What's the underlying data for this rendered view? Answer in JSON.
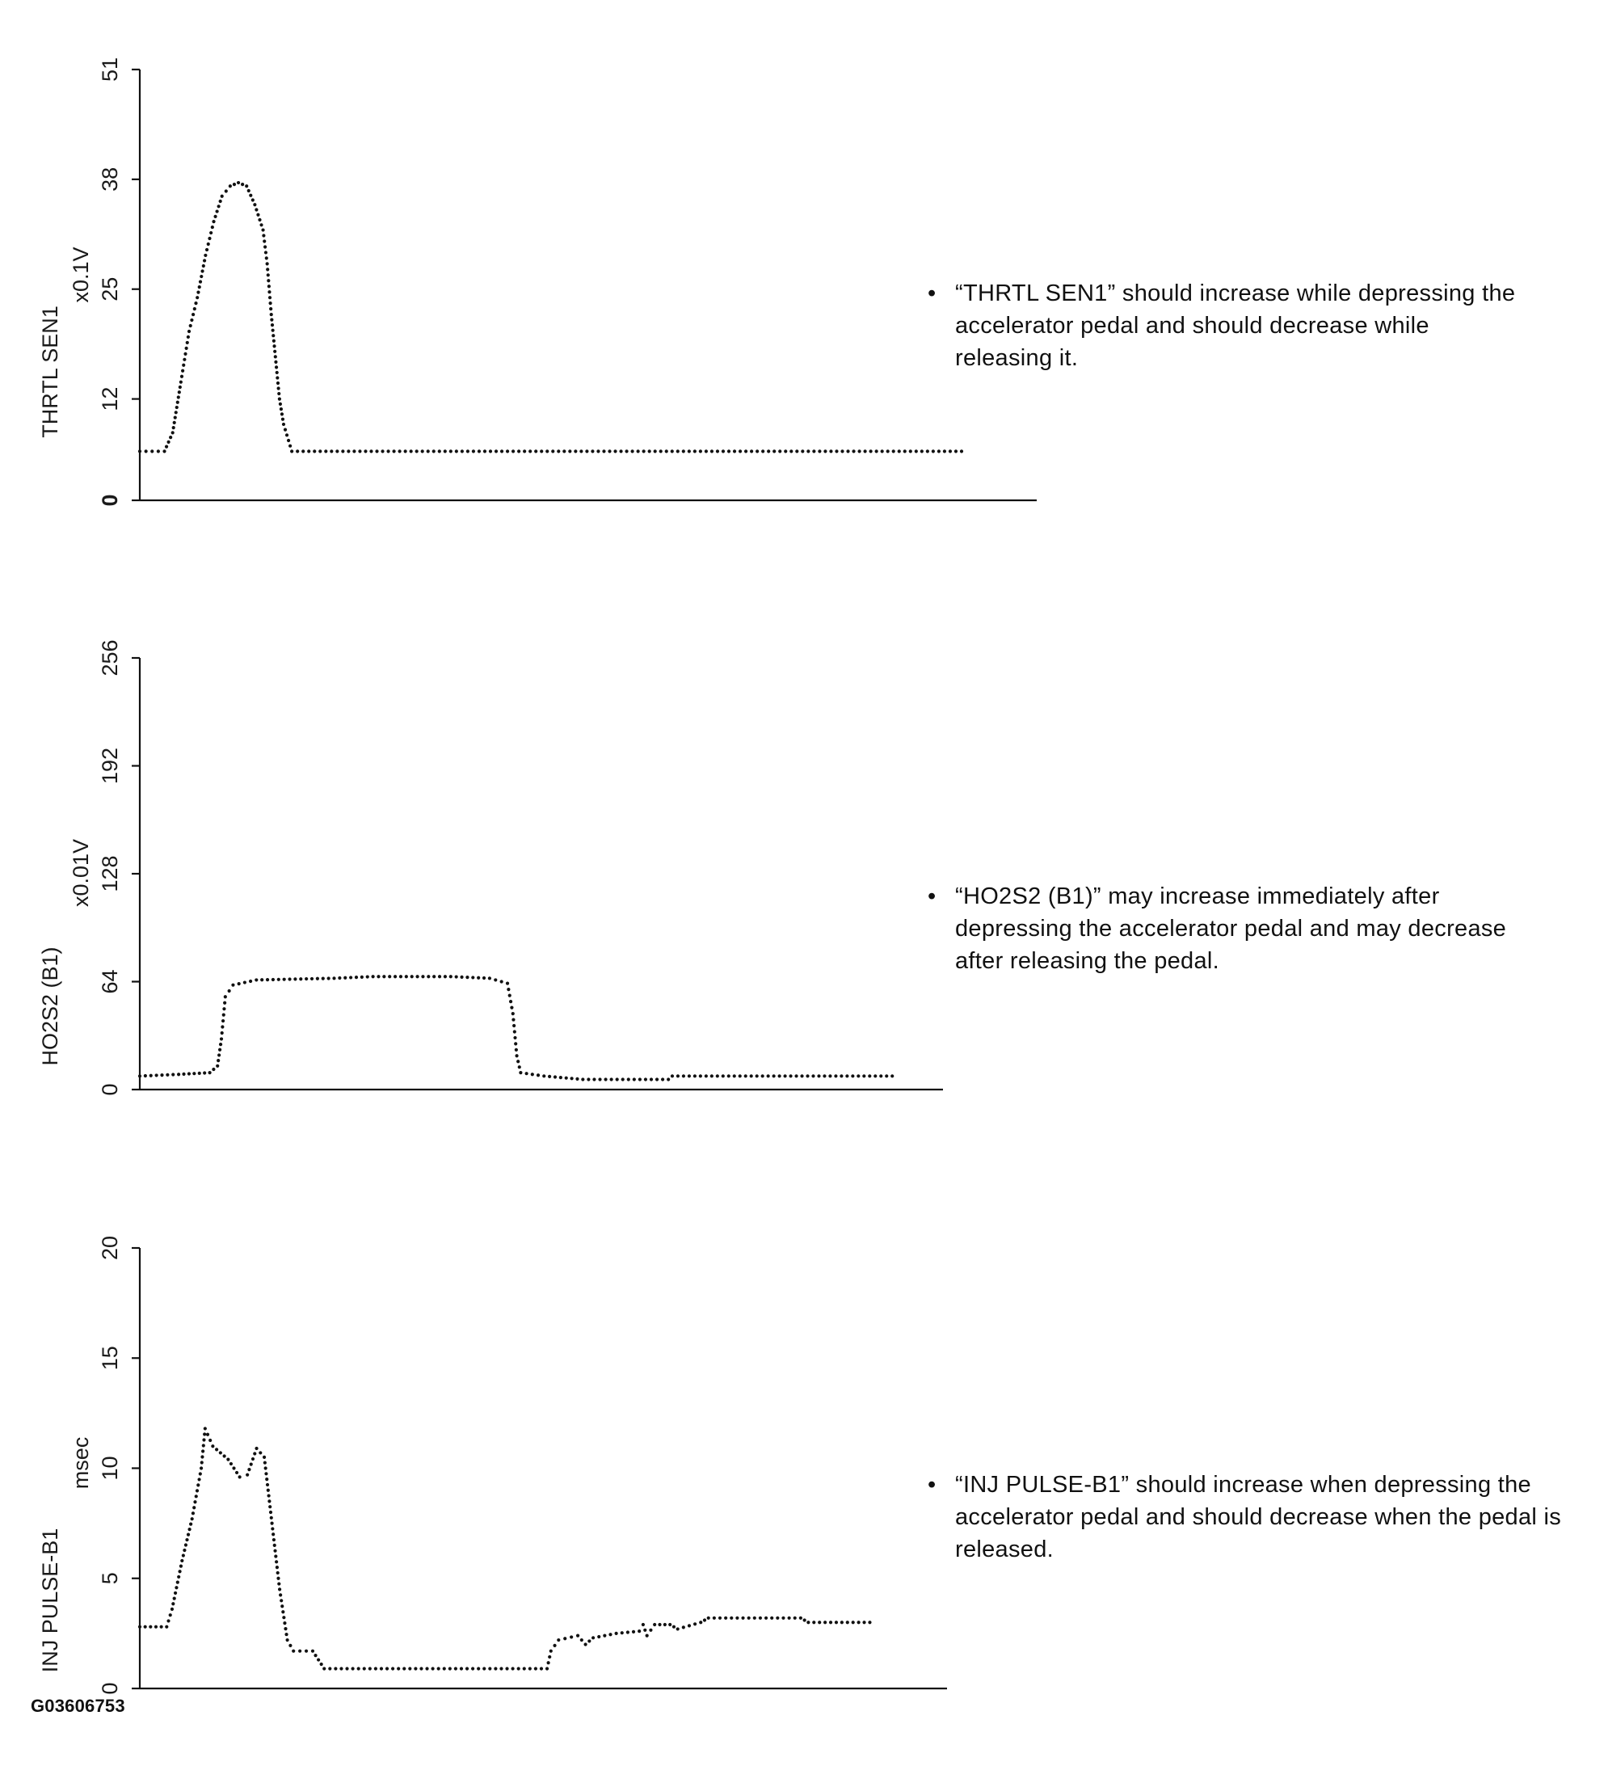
{
  "chart_data": [
    {
      "type": "scatter",
      "id": "thrtl",
      "ylabel": "THRTL SEN1",
      "unit": "x0.1V",
      "yticks": [
        "0",
        "12",
        "25",
        "38",
        "51"
      ],
      "ylim": [
        0,
        51
      ],
      "xlim": [
        0,
        1000
      ],
      "x_labeled": false,
      "points": [
        [
          0,
          5.8
        ],
        [
          30,
          5.8
        ],
        [
          40,
          8
        ],
        [
          45,
          11
        ],
        [
          50,
          14
        ],
        [
          60,
          20
        ],
        [
          70,
          24
        ],
        [
          80,
          29
        ],
        [
          90,
          33
        ],
        [
          100,
          36
        ],
        [
          110,
          37.2
        ],
        [
          120,
          37.6
        ],
        [
          130,
          37.2
        ],
        [
          140,
          35
        ],
        [
          150,
          32
        ],
        [
          155,
          28
        ],
        [
          160,
          22
        ],
        [
          165,
          17
        ],
        [
          170,
          12
        ],
        [
          175,
          9
        ],
        [
          185,
          5.8
        ],
        [
          1000,
          5.8
        ]
      ],
      "note": "“THRTL SEN1” should increase while depressing the accelerator pedal and should decrease while releasing it."
    },
    {
      "type": "scatter",
      "id": "ho2s2",
      "ylabel": "HO2S2 (B1)",
      "unit": "x0.01V",
      "yticks": [
        "0",
        "64",
        "128",
        "192",
        "256"
      ],
      "ylim": [
        0,
        256
      ],
      "xlim": [
        0,
        1000
      ],
      "x_labeled": false,
      "points": [
        [
          0,
          8
        ],
        [
          50,
          9
        ],
        [
          90,
          10
        ],
        [
          100,
          14
        ],
        [
          105,
          30
        ],
        [
          110,
          55
        ],
        [
          120,
          62
        ],
        [
          150,
          65
        ],
        [
          250,
          66
        ],
        [
          300,
          67
        ],
        [
          400,
          67
        ],
        [
          450,
          66
        ],
        [
          473,
          63
        ],
        [
          480,
          45
        ],
        [
          485,
          20
        ],
        [
          490,
          10
        ],
        [
          520,
          8
        ],
        [
          570,
          6
        ],
        [
          680,
          6
        ],
        [
          685,
          8
        ],
        [
          968,
          8
        ]
      ],
      "note": "“HO2S2 (B1)” may increase immediately after depressing the accelerator pedal and may decrease after releasing the pedal."
    },
    {
      "type": "scatter",
      "id": "inj",
      "ylabel": "INJ PULSE-B1",
      "unit": "msec",
      "yticks": [
        "0",
        "5",
        "10",
        "15",
        "20"
      ],
      "ylim": [
        0,
        20
      ],
      "xlim": [
        0,
        1000
      ],
      "x_labeled": false,
      "points": [
        [
          0,
          2.8
        ],
        [
          35,
          2.8
        ],
        [
          42,
          3.6
        ],
        [
          55,
          5.8
        ],
        [
          68,
          7.7
        ],
        [
          80,
          10
        ],
        [
          85,
          11.8
        ],
        [
          95,
          11
        ],
        [
          115,
          10.4
        ],
        [
          130,
          9.6
        ],
        [
          140,
          9.7
        ],
        [
          152,
          10.9
        ],
        [
          162,
          10.5
        ],
        [
          172,
          7.5
        ],
        [
          182,
          4.5
        ],
        [
          192,
          2.2
        ],
        [
          200,
          1.7
        ],
        [
          225,
          1.7
        ],
        [
          240,
          0.9
        ],
        [
          530,
          0.9
        ],
        [
          535,
          1.7
        ],
        [
          545,
          2.2
        ],
        [
          570,
          2.4
        ],
        [
          580,
          2.0
        ],
        [
          590,
          2.3
        ],
        [
          620,
          2.5
        ],
        [
          650,
          2.6
        ],
        [
          655,
          2.9
        ],
        [
          660,
          2.4
        ],
        [
          670,
          2.9
        ],
        [
          690,
          2.9
        ],
        [
          700,
          2.7
        ],
        [
          730,
          3.0
        ],
        [
          740,
          3.2
        ],
        [
          860,
          3.2
        ],
        [
          870,
          3.0
        ],
        [
          950,
          3.0
        ]
      ],
      "note": "“INJ PULSE-B1” should increase when depressing the accelerator pedal and should decrease when the pedal is released."
    }
  ],
  "figure_id": "G03606753"
}
